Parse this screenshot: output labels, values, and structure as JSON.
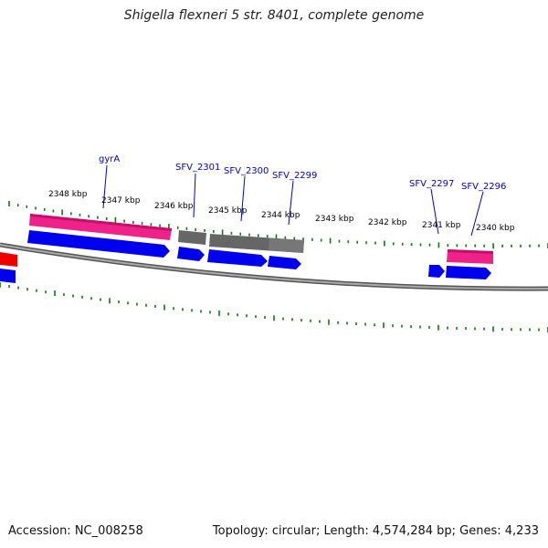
{
  "title": "Shigella flexneri 5 str. 8401, complete genome",
  "footer": {
    "accession": "Accession: NC_008258",
    "topology": "Topology: circular; Length: 4,574,284 bp; Genes: 4,233"
  },
  "scale_ticks": [
    {
      "label": "2348 kbp"
    },
    {
      "label": "2347 kbp"
    },
    {
      "label": "2346 kbp"
    },
    {
      "label": "2345 kbp"
    },
    {
      "label": "2344 kbp"
    },
    {
      "label": "2343 kbp"
    },
    {
      "label": "2342 kbp"
    },
    {
      "label": "2341 kbp"
    },
    {
      "label": "2340 kbp"
    }
  ],
  "gene_labels": [
    "gyrA",
    "SFV_2301",
    "SFV_2300",
    "SFV_2299",
    "SFV_2297",
    "SFV_2296"
  ],
  "colors": {
    "cds": "#0000ee",
    "gene_pink": "#ee2288",
    "gene_gray": "#666666",
    "gene_red": "#ee0000",
    "ticks": "#117711",
    "backbone": "#888888",
    "label": "#0000cc"
  }
}
